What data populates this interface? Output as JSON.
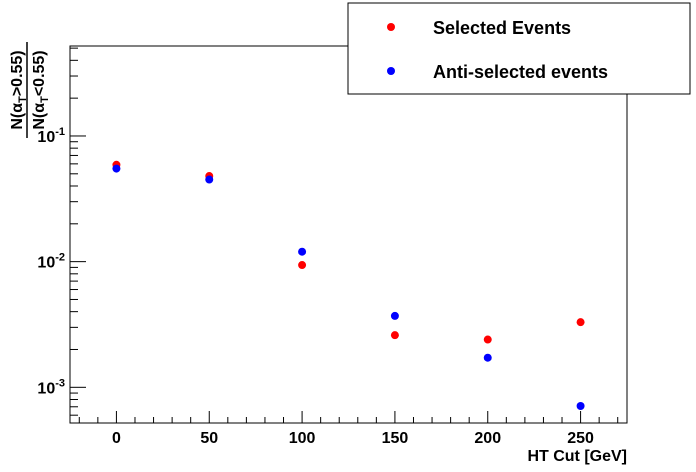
{
  "chart_data": {
    "type": "scatter",
    "title": "",
    "xlabel": "HT Cut [GeV]",
    "ylabel": {
      "numerator": "N(α_T>0.55)",
      "denominator": "N(α_T<0.55)"
    },
    "xlim": [
      -25,
      275
    ],
    "ylim": [
      0.00052,
      0.52
    ],
    "log_y": true,
    "grid": false,
    "legend_position": "top-right",
    "x_ticks": [
      {
        "value": 0,
        "label": "0"
      },
      {
        "value": 50,
        "label": "50"
      },
      {
        "value": 100,
        "label": "100"
      },
      {
        "value": 150,
        "label": "150"
      },
      {
        "value": 200,
        "label": "200"
      },
      {
        "value": 250,
        "label": "250"
      }
    ],
    "y_ticks": [
      {
        "value": 0.1,
        "base": "10",
        "exp": "-1"
      },
      {
        "value": 0.01,
        "base": "10",
        "exp": "-2"
      },
      {
        "value": 0.001,
        "base": "10",
        "exp": "-3"
      }
    ],
    "series": [
      {
        "name": "Selected Events",
        "color": "#ff0000",
        "x": [
          0,
          50,
          100,
          150,
          200,
          250
        ],
        "y": [
          0.059,
          0.048,
          0.0094,
          0.0026,
          0.0024,
          0.0033
        ]
      },
      {
        "name": "Anti-selected events",
        "color": "#0000ff",
        "x": [
          0,
          50,
          100,
          150,
          200,
          250
        ],
        "y": [
          0.055,
          0.045,
          0.012,
          0.0037,
          0.00172,
          0.00071
        ]
      }
    ]
  }
}
